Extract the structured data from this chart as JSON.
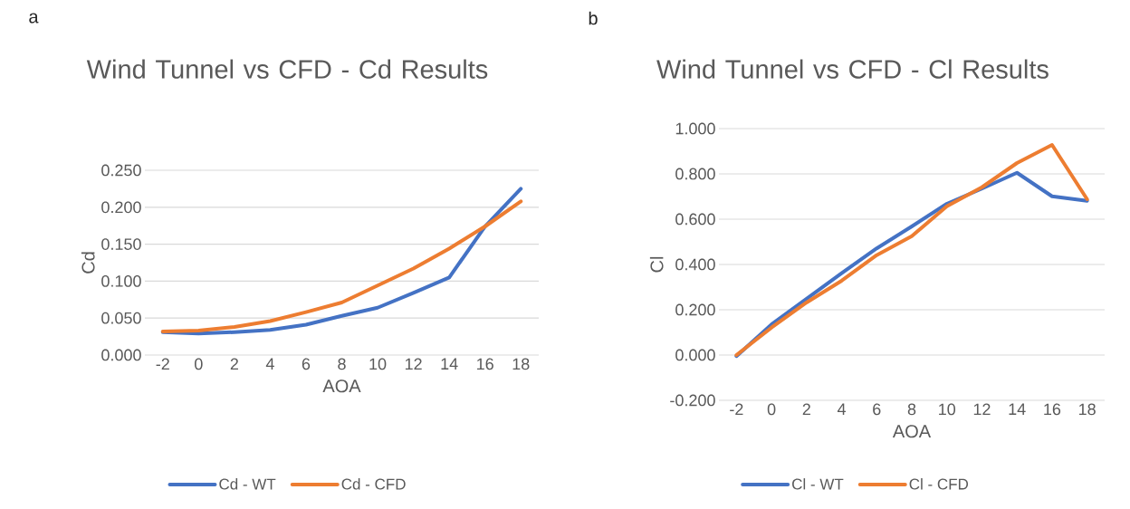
{
  "chart_data": [
    {
      "type": "line",
      "title": "Wind Tunnel vs CFD - Cd Results",
      "xlabel": "AOA",
      "ylabel": "Cd",
      "annotations": [
        "a"
      ],
      "categories": [
        "-2",
        "0",
        "2",
        "4",
        "6",
        "8",
        "10",
        "12",
        "14",
        "16",
        "18"
      ],
      "series": [
        {
          "name": "Cd - WT",
          "color": "#4472c4",
          "values": [
            0.031,
            0.029,
            0.031,
            0.034,
            0.041,
            0.053,
            0.064,
            0.084,
            0.105,
            0.174,
            0.225
          ]
        },
        {
          "name": "Cd - CFD",
          "color": "#ed7d31",
          "values": [
            0.032,
            0.033,
            0.038,
            0.046,
            0.058,
            0.071,
            0.094,
            0.117,
            0.144,
            0.174,
            0.208
          ]
        }
      ],
      "ylim": [
        0,
        0.25
      ],
      "yticks": [
        {
          "value": 0,
          "label": "0.000"
        },
        {
          "value": 0.05,
          "label": "0.050"
        },
        {
          "value": 0.1,
          "label": "0.100"
        },
        {
          "value": 0.15,
          "label": "0.150"
        },
        {
          "value": 0.2,
          "label": "0.200"
        },
        {
          "value": 0.25,
          "label": "0.250"
        }
      ],
      "grid": "y",
      "legend": "bottom"
    },
    {
      "type": "line",
      "title": "Wind Tunnel vs CFD - Cl Results",
      "xlabel": "AOA",
      "ylabel": "Cl",
      "annotations": [
        "b"
      ],
      "categories": [
        "-2",
        "0",
        "2",
        "4",
        "6",
        "8",
        "10",
        "12",
        "14",
        "16",
        "18"
      ],
      "series": [
        {
          "name": "Cl - WT",
          "color": "#4472c4",
          "values": [
            -0.005,
            0.135,
            0.248,
            0.361,
            0.471,
            0.568,
            0.668,
            0.735,
            0.805,
            0.701,
            0.681
          ]
        },
        {
          "name": "Cl - CFD",
          "color": "#ed7d31",
          "values": [
            0.0,
            0.121,
            0.232,
            0.328,
            0.441,
            0.525,
            0.657,
            0.741,
            0.848,
            0.928,
            0.688
          ]
        }
      ],
      "ylim": [
        -0.2,
        1.0
      ],
      "yticks": [
        {
          "value": -0.2,
          "label": "-0.200"
        },
        {
          "value": 0,
          "label": "0.000"
        },
        {
          "value": 0.2,
          "label": "0.200"
        },
        {
          "value": 0.4,
          "label": "0.400"
        },
        {
          "value": 0.6,
          "label": "0.600"
        },
        {
          "value": 0.8,
          "label": "0.800"
        },
        {
          "value": 1.0,
          "label": "1.000"
        }
      ],
      "grid": "y",
      "legend": "bottom"
    }
  ]
}
